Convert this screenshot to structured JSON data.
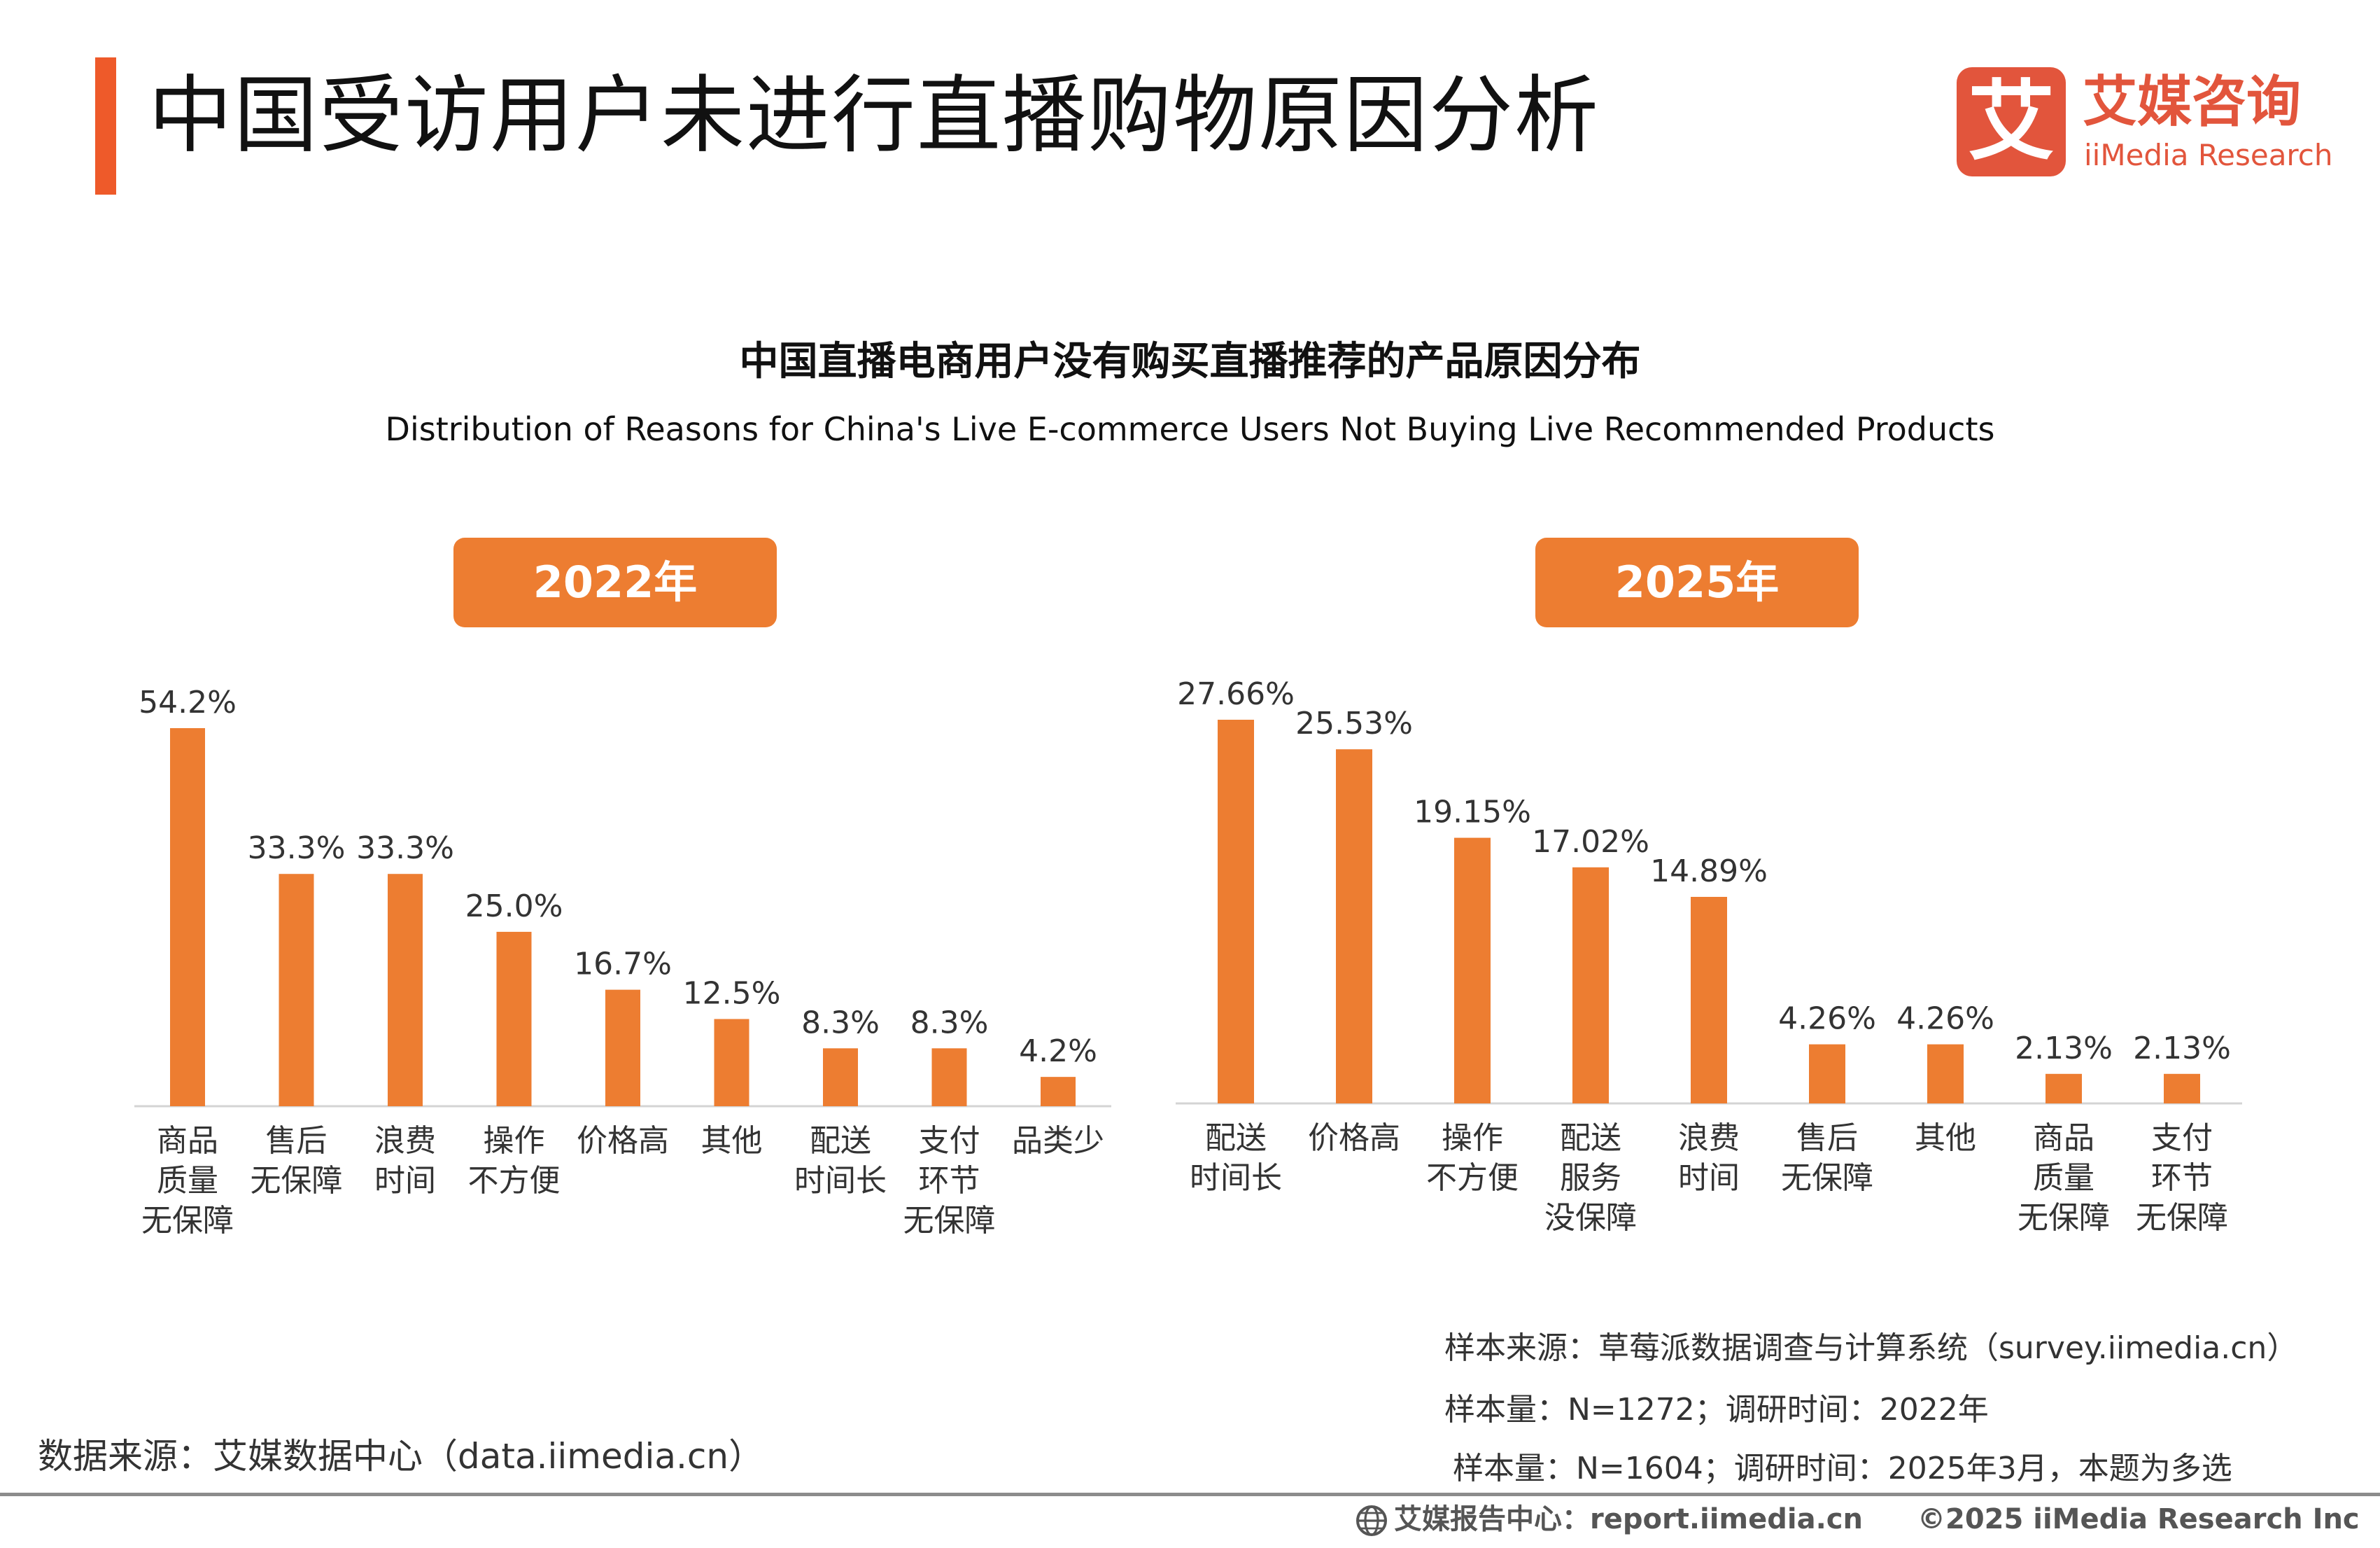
{
  "header": {
    "title": "中国受访用户未进行直播购物原因分析",
    "accent_color": "#EE5A2A"
  },
  "logo": {
    "mark": "艾",
    "cn": "艾媒咨询",
    "en": "iiMedia Research",
    "color": "#E2553C"
  },
  "bar_color": "#ED7D31",
  "chart_data": [
    {
      "type": "bar",
      "badge": "2022年",
      "title": "中国直播电商用户没有购买直播推荐的产品原因分布",
      "subtitle": "Distribution of Reasons for China's Live E-commerce Users Not Buying Live Recommended Products",
      "categories": [
        [
          "商品",
          "质量",
          "无保障"
        ],
        [
          "售后",
          "无保障"
        ],
        [
          "浪费",
          "时间"
        ],
        [
          "操作",
          "不方便"
        ],
        [
          "价格高"
        ],
        [
          "其他"
        ],
        [
          "配送",
          "时间长"
        ],
        [
          "支付",
          "环节",
          "无保障"
        ],
        [
          "品类少"
        ]
      ],
      "values": [
        54.2,
        33.3,
        33.3,
        25.0,
        16.7,
        12.5,
        8.3,
        8.3,
        4.2
      ],
      "value_labels": [
        "54.2%",
        "33.3%",
        "33.3%",
        "25.0%",
        "16.7%",
        "12.5%",
        "8.3%",
        "8.3%",
        "4.2%"
      ],
      "unit": "%",
      "ylim": [
        0,
        54.2
      ],
      "grid": false,
      "legend": "none"
    },
    {
      "type": "bar",
      "badge": "2025年",
      "categories": [
        [
          "配送",
          "时间长"
        ],
        [
          "价格高"
        ],
        [
          "操作",
          "不方便"
        ],
        [
          "配送",
          "服务",
          "没保障"
        ],
        [
          "浪费",
          "时间"
        ],
        [
          "售后",
          "无保障"
        ],
        [
          "其他"
        ],
        [
          "商品",
          "质量",
          "无保障"
        ],
        [
          "支付",
          "环节",
          "无保障"
        ]
      ],
      "values": [
        27.66,
        25.53,
        19.15,
        17.02,
        14.89,
        4.26,
        4.26,
        2.13,
        2.13
      ],
      "value_labels": [
        "27.66%",
        "25.53%",
        "19.15%",
        "17.02%",
        "14.89%",
        "4.26%",
        "4.26%",
        "2.13%",
        "2.13%"
      ],
      "unit": "%",
      "ylim": [
        0,
        27.66
      ],
      "grid": false,
      "legend": "none"
    }
  ],
  "sources": {
    "left": "数据来源：艾媒数据中心（data.iimedia.cn）",
    "right_1": "样本来源：草莓派数据调查与计算系统（survey.iimedia.cn）",
    "right_2": "样本量：N=1272；调研时间：2022年",
    "right_3": "样本量：N=1604；调研时间：2025年3月，本题为多选"
  },
  "footer": {
    "report_site": "艾媒报告中心：report.iimedia.cn",
    "copyright": "©2025  iiMedia Research  Inc",
    "globe_icon": "globe-icon"
  }
}
